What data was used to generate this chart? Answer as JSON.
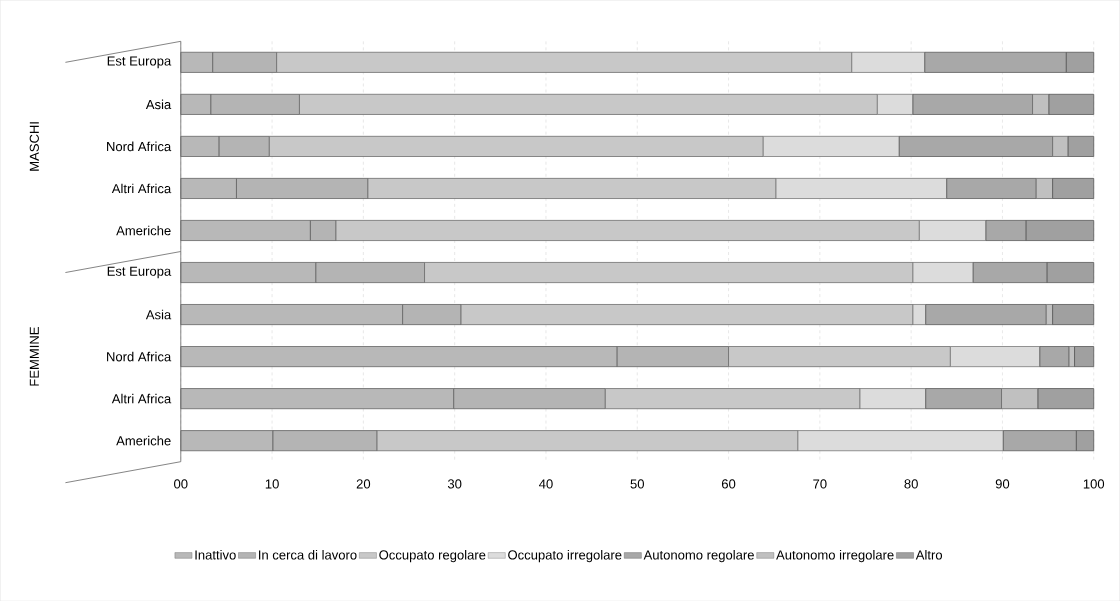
{
  "chart_data": {
    "type": "bar",
    "orientation": "horizontal",
    "stacked": true,
    "categories": [
      "Est Europa",
      "Asia",
      "Nord Africa",
      "Altri Africa",
      "Americhe",
      "Est Europa",
      "Asia",
      "Nord Africa",
      "Altri Africa",
      "Americhe"
    ],
    "series": [
      {
        "name": "Inattivo",
        "color": "#b8b8b8",
        "values": [
          3.5,
          3.3,
          4.2,
          6.1,
          14.2,
          14.8,
          24.3,
          47.8,
          29.9,
          10.1
        ]
      },
      {
        "name": "In cerca di lavoro",
        "color": "#b4b4b4",
        "values": [
          7,
          9.7,
          5.5,
          14.4,
          2.8,
          11.9,
          6.4,
          12.2,
          16.6,
          11.4
        ]
      },
      {
        "name": "Occupato regolare",
        "color": "#c8c8c8",
        "values": [
          63,
          63.3,
          54.1,
          44.7,
          63.9,
          53.5,
          49.5,
          24.3,
          27.9,
          46.1
        ]
      },
      {
        "name": "Occupato irregolare",
        "color": "#dcdcdc",
        "values": [
          8,
          3.9,
          14.9,
          18.7,
          7.3,
          6.6,
          1.4,
          9.8,
          7.2,
          22.5
        ]
      },
      {
        "name": "Autonomo regolare",
        "color": "#a8a8a8",
        "values": [
          15.5,
          13.1,
          16.8,
          9.8,
          4.4,
          8.1,
          13.2,
          3.2,
          8.3,
          8
        ]
      },
      {
        "name": "Autonomo irregolare",
        "color": "#c0c0c0",
        "values": [
          0,
          1.8,
          1.7,
          1.8,
          0,
          0,
          0.7,
          0.6,
          4,
          0
        ]
      },
      {
        "name": "Altro",
        "color": "#a0a0a0",
        "values": [
          3,
          4.9,
          2.8,
          4.5,
          7.4,
          5.1,
          4.5,
          2.1,
          6.1,
          1.9
        ]
      }
    ],
    "xlim": [
      0,
      100
    ],
    "xticks": [
      {
        "value": 0,
        "label": "00"
      },
      10,
      20,
      30,
      40,
      50,
      60,
      70,
      80,
      90,
      100
    ],
    "grid": "x",
    "legend": "bottom",
    "annotations": [
      "MASCHI",
      "FEMMINE"
    ]
  }
}
